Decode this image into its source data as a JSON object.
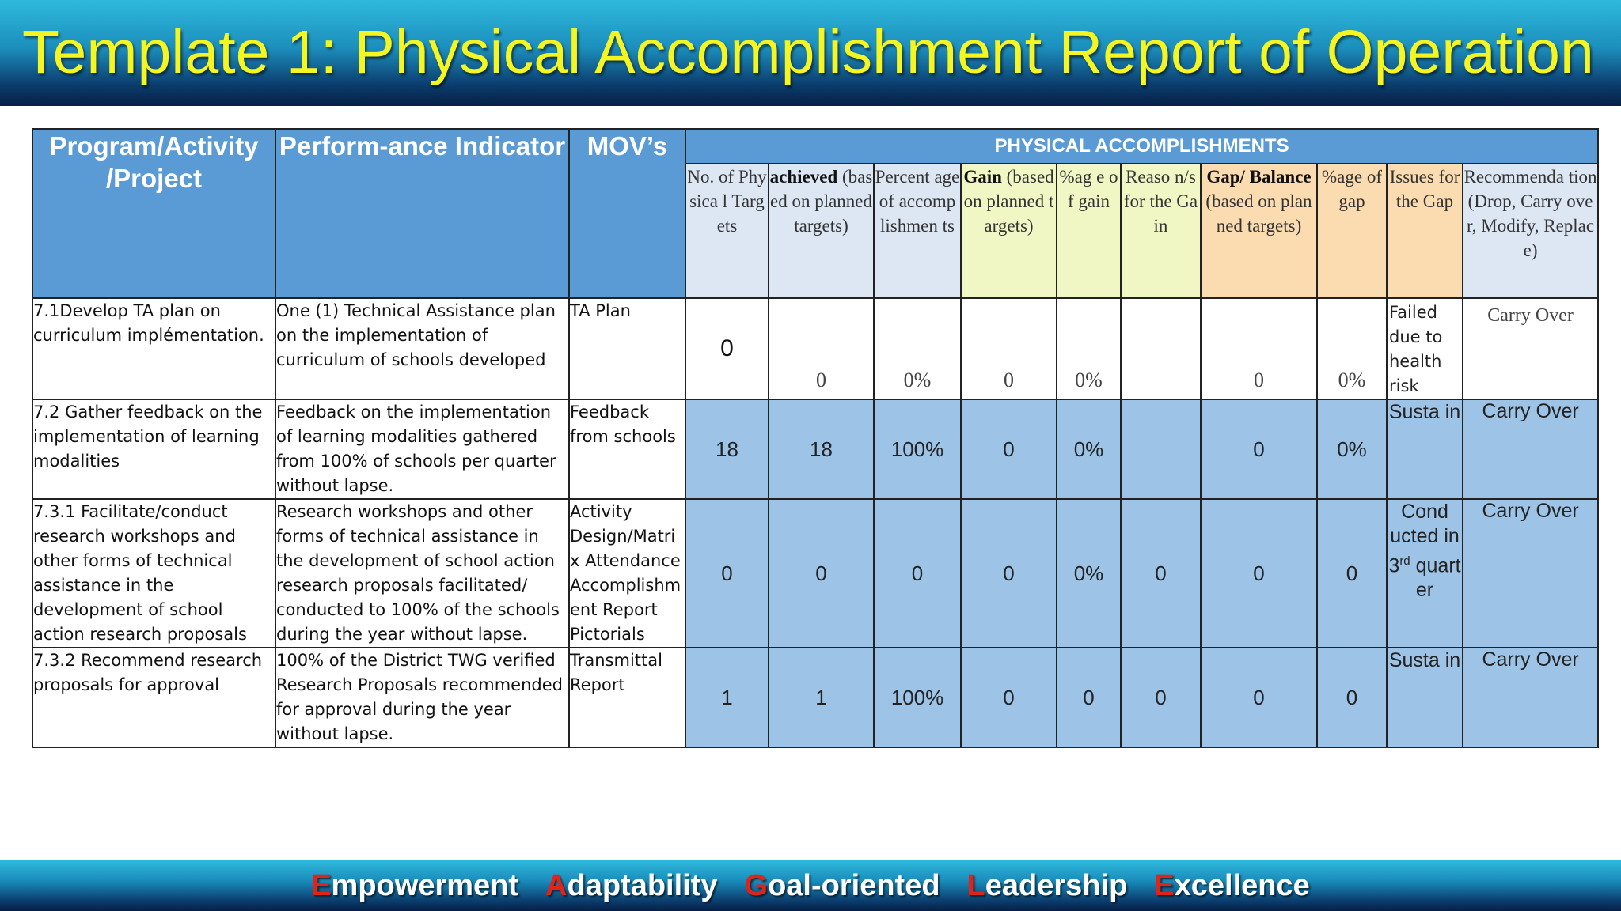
{
  "title": "Template 1: Physical Accomplishment Report of Operation",
  "headers": {
    "program": "Program/Activity /Project",
    "indicator": "Perform-ance Indicator",
    "movs": "MOV’s",
    "group": "PHYSICAL ACCOMPLISHMENTS",
    "no_targets": "No. of Physica l Targets",
    "achieved_bold": "achieved",
    "achieved_rest": "(based on planned targets)",
    "pct_accomp": "Percent age of accomp lishmen ts",
    "gain_bold": "Gain",
    "gain_rest": "(based on planned targets)",
    "pct_gain": "%ag e of gain",
    "reasons_gain": "Reaso n/s for the Gain",
    "gap_bold": "Gap/ Balance",
    "gap_rest": "(based on planned targets)",
    "pct_gap": "%age of gap",
    "issues_gap": "Issues for the Gap",
    "recommendation": "Recommenda tion (Drop, Carry over, Modify, Replace)"
  },
  "rows": [
    {
      "program": "7.1Develop TA plan on curriculum implémentation.",
      "indicator": "One (1) Technical Assistance plan on the  implementation of curriculum of schools  developed",
      "mov": "TA Plan",
      "targets": "0",
      "achieved": "0",
      "pct_accomp": "0%",
      "gain": "0",
      "pct_gain": "0%",
      "reasons": "",
      "gap": "0",
      "pct_gap": "0%",
      "issues": "Failed due to health risk",
      "recommendation": "Carry Over"
    },
    {
      "program": "7.2 Gather feedback on the implementation of  learning modalities",
      "indicator": "Feedback on the implementation of  learning modalities gathered from 100% of schools per quarter without lapse.",
      "mov": "Feedback from schools",
      "targets": "18",
      "achieved": "18",
      "pct_accomp": "100%",
      "gain": "0",
      "pct_gain": "0%",
      "reasons": "",
      "gap": "0",
      "pct_gap": "0%",
      "issues": "Susta in",
      "recommendation": "Carry Over"
    },
    {
      "program": "7.3.1 Facilitate/conduct research workshops and other forms of technical assistance in the development of school action research proposals",
      "indicator": " Research workshops and other forms of technical assistance in the development of school action research proposals facilitated/ conducted to 100% of the schools during the year without lapse.",
      "mov": "Activity Design/Matri x Attendance Accomplishm ent Report Pictorials",
      "targets": "0",
      "achieved": "0",
      "pct_accomp": "0",
      "gain": "0",
      "pct_gain": "0%",
      "reasons": "0",
      "gap": "0",
      "pct_gap": "0",
      "issues_a": "Cond ucted in 3",
      "issues_sup": "rd",
      "issues_b": " quart er",
      "recommendation": "Carry Over"
    },
    {
      "program": "7.3.2  Recommend research proposals for approval",
      "indicator": "100% of the District TWG verified Research Proposals recommended for approval during the year without lapse.",
      "mov": "Transmittal Report",
      "targets": "1",
      "achieved": "1",
      "pct_accomp": "100%",
      "gain": "0",
      "pct_gain": "0",
      "reasons": "0",
      "gap": "0",
      "pct_gap": "0",
      "issues": "Susta in",
      "recommendation": "Carry Over"
    }
  ],
  "footer": [
    {
      "first": "E",
      "rest": "mpowerment"
    },
    {
      "first": "A",
      "rest": "daptability"
    },
    {
      "first": "G",
      "rest": "oal-oriented"
    },
    {
      "first": "L",
      "rest": "eadership"
    },
    {
      "first": "E",
      "rest": "xcellence"
    }
  ],
  "colors": {
    "title_text": "#f4f521",
    "header_blue": "#5b9bd5",
    "row_blue": "#9dc3e6",
    "sub_blue": "#dde6f3",
    "sub_yellow": "#f0f6c4",
    "sub_orange": "#fbdcb1",
    "footer_initial": "#e2231a"
  }
}
